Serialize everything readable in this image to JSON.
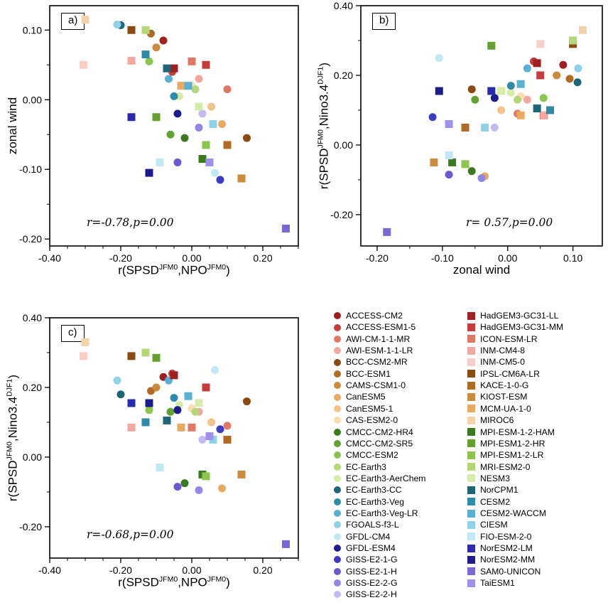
{
  "chart_data": {
    "type": "scatter",
    "description": "Inter-model scatter of CMIP models: South Pacific SLP dipole (SPSD) relations to NPO, zonal wind and Nino3.4",
    "panels": [
      {
        "id": "a",
        "label": "a)",
        "x": "npo",
        "y": "zw",
        "xlabel_parts": [
          {
            "t": "r(SPSD"
          },
          {
            "t": "JFM0",
            "sup": true
          },
          {
            "t": ",NPO"
          },
          {
            "t": "JFM0",
            "sup": true
          },
          {
            "t": ")"
          }
        ],
        "ylabel_parts": [
          {
            "t": "zonal wind"
          }
        ],
        "xlim": [
          -0.4,
          0.3
        ],
        "ylim": [
          -0.21,
          0.135
        ],
        "xticks": [
          -0.4,
          -0.2,
          0.0,
          0.2
        ],
        "yticks": [
          0.1,
          0.0,
          -0.1,
          -0.2
        ],
        "xminor": 0.05,
        "yminor": 0.05,
        "annotation": "r=-0.78,p=0.00"
      },
      {
        "id": "b",
        "label": "b)",
        "x": "zw",
        "y": "nino",
        "xlabel_parts": [
          {
            "t": "zonal wind"
          }
        ],
        "ylabel_parts": [
          {
            "t": "r(SPSD"
          },
          {
            "t": "JFM0",
            "sup": true
          },
          {
            "t": ",Nino3.4"
          },
          {
            "t": "DJF1",
            "sup": true
          },
          {
            "t": ")"
          }
        ],
        "xlim": [
          -0.225,
          0.145
        ],
        "ylim": [
          -0.29,
          0.4
        ],
        "xticks": [
          -0.2,
          -0.1,
          0.0,
          0.1
        ],
        "yticks": [
          0.4,
          0.2,
          0.0,
          -0.2
        ],
        "xminor": 0.05,
        "yminor": 0.1,
        "annotation": "r= 0.57,p=0.00"
      },
      {
        "id": "c",
        "label": "c)",
        "x": "npo",
        "y": "nino",
        "xlabel_parts": [
          {
            "t": "r(SPSD"
          },
          {
            "t": "JFM0",
            "sup": true
          },
          {
            "t": ",NPO"
          },
          {
            "t": "JFM0",
            "sup": true
          },
          {
            "t": ")"
          }
        ],
        "ylabel_parts": [
          {
            "t": "r(SPSD"
          },
          {
            "t": "JFM0",
            "sup": true
          },
          {
            "t": ",Nino3.4"
          },
          {
            "t": "DJF1",
            "sup": true
          },
          {
            "t": ")"
          }
        ],
        "xlim": [
          -0.4,
          0.3
        ],
        "ylim": [
          -0.29,
          0.4
        ],
        "xticks": [
          -0.4,
          -0.2,
          0.0,
          0.2
        ],
        "yticks": [
          0.4,
          0.2,
          0.0,
          -0.2
        ],
        "xminor": 0.05,
        "yminor": 0.1,
        "annotation": "r=-0.68,p=0.00"
      }
    ],
    "models": [
      {
        "name": "ACCESS-CM2",
        "group": "circle",
        "color": "#9e2020",
        "npo": -0.08,
        "zw": 0.085,
        "nino": 0.23
      },
      {
        "name": "ACCESS-ESM1-5",
        "group": "circle",
        "color": "#c43c3c",
        "npo": -0.055,
        "zw": 0.04,
        "nino": 0.24
      },
      {
        "name": "AWI-CM-1-1-MR",
        "group": "circle",
        "color": "#e07868",
        "npo": 0.1,
        "zw": 0.015,
        "nino": 0.09
      },
      {
        "name": "AWI-ESM-1-1-LR",
        "group": "circle",
        "color": "#f0a8a0",
        "npo": 0.02,
        "zw": 0.03,
        "nino": 0.13
      },
      {
        "name": "BCC-CSM2-MR",
        "group": "circle",
        "color": "#8a4a10",
        "npo": 0.155,
        "zw": -0.055,
        "nino": 0.16
      },
      {
        "name": "BCC-ESM1",
        "group": "circle",
        "color": "#b06a24",
        "npo": -0.115,
        "zw": 0.095,
        "nino": 0.19
      },
      {
        "name": "CAMS-CSM1-0",
        "group": "circle",
        "color": "#cc8a3c",
        "npo": -0.1,
        "zw": 0.075,
        "nino": 0.2
      },
      {
        "name": "CanESM5",
        "group": "circle",
        "color": "#e8aa60",
        "npo": 0.085,
        "zw": -0.035,
        "nino": -0.09
      },
      {
        "name": "CanESM5-1",
        "group": "circle",
        "color": "#f2c48c",
        "npo": 0.055,
        "zw": -0.01,
        "nino": 0.1
      },
      {
        "name": "CAS-ESM2-0",
        "group": "circle",
        "color": "#f8ddb4",
        "npo": 0.0,
        "zw": 0.02,
        "nino": 0.14
      },
      {
        "name": "CMCC-CM2-HR4",
        "group": "circle",
        "color": "#3c7a20",
        "npo": -0.02,
        "zw": -0.055,
        "nino": -0.075
      },
      {
        "name": "CMCC-CM2-SR5",
        "group": "circle",
        "color": "#64a032",
        "npo": -0.06,
        "zw": -0.05,
        "nino": 0.13
      },
      {
        "name": "CMCC-ESM2",
        "group": "circle",
        "color": "#8cc44e",
        "npo": -0.12,
        "zw": 0.055,
        "nino": 0.135
      },
      {
        "name": "EC-Earth3",
        "group": "circle",
        "color": "#b4d878",
        "npo": 0.01,
        "zw": 0.015,
        "nino": 0.13
      },
      {
        "name": "EC-Earth3-AerChem",
        "group": "circle",
        "color": "#d8ecaa",
        "npo": -0.035,
        "zw": 0.005,
        "nino": 0.15
      },
      {
        "name": "EC-Earth3-CC",
        "group": "circle",
        "color": "#1c6678",
        "npo": -0.2,
        "zw": 0.107,
        "nino": 0.18
      },
      {
        "name": "EC-Earth3-Veg",
        "group": "circle",
        "color": "#2f8ba6",
        "npo": -0.05,
        "zw": 0.005,
        "nino": 0.17
      },
      {
        "name": "EC-Earth3-Veg-LR",
        "group": "circle",
        "color": "#5ab0d0",
        "npo": -0.065,
        "zw": 0.03,
        "nino": 0.22
      },
      {
        "name": "FGOALS-f3-L",
        "group": "circle",
        "color": "#8fd2e8",
        "npo": -0.21,
        "zw": 0.108,
        "nino": 0.22
      },
      {
        "name": "GFDL-CM4",
        "group": "circle",
        "color": "#c2e8f4",
        "npo": 0.065,
        "zw": -0.105,
        "nino": 0.25
      },
      {
        "name": "GFDL-ESM4",
        "group": "circle",
        "color": "#1c1c8e",
        "npo": -0.04,
        "zw": -0.02,
        "nino": 0.135
      },
      {
        "name": "GISS-E2-1-G",
        "group": "circle",
        "color": "#3c3cc0",
        "npo": 0.08,
        "zw": -0.115,
        "nino": 0.08
      },
      {
        "name": "GISS-E2-1-H",
        "group": "circle",
        "color": "#6a58d0",
        "npo": -0.04,
        "zw": -0.09,
        "nino": -0.085
      },
      {
        "name": "GISS-E2-2-G",
        "group": "circle",
        "color": "#9486e4",
        "npo": 0.02,
        "zw": -0.04,
        "nino": -0.095
      },
      {
        "name": "GISS-E2-2-H",
        "group": "circle",
        "color": "#c4baf2",
        "npo": 0.03,
        "zw": -0.02,
        "nino": 0.05
      },
      {
        "name": "HadGEM3-GC31-LL",
        "group": "square",
        "color": "#9e2020",
        "npo": -0.05,
        "zw": 0.045,
        "nino": 0.235
      },
      {
        "name": "HadGEM3-GC31-MM",
        "group": "square",
        "color": "#c43c3c",
        "npo": 0.04,
        "zw": 0.05,
        "nino": 0.2
      },
      {
        "name": "ICON-ESM-LR",
        "group": "square",
        "color": "#e07868",
        "npo": 0.0,
        "zw": 0.055,
        "nino": 0.085
      },
      {
        "name": "INM-CM4-8",
        "group": "square",
        "color": "#f0a8a0",
        "npo": -0.17,
        "zw": 0.056,
        "nino": 0.085
      },
      {
        "name": "INM-CM5-0",
        "group": "square",
        "color": "#f8cfc8",
        "npo": -0.305,
        "zw": 0.05,
        "nino": 0.29
      },
      {
        "name": "IPSL-CM6A-LR",
        "group": "square",
        "color": "#8a4a10",
        "npo": -0.17,
        "zw": 0.1,
        "nino": 0.29
      },
      {
        "name": "KACE-1-0-G",
        "group": "square",
        "color": "#b06a24",
        "npo": 0.1,
        "zw": -0.065,
        "nino": 0.05
      },
      {
        "name": "KIOST-ESM",
        "group": "square",
        "color": "#cc8a3c",
        "npo": 0.14,
        "zw": -0.113,
        "nino": -0.05
      },
      {
        "name": "MCM-UA-1-0",
        "group": "square",
        "color": "#e8aa60",
        "npo": -0.03,
        "zw": 0.02,
        "nino": 0.085
      },
      {
        "name": "MIROC6",
        "group": "square",
        "color": "#f5d3a8",
        "npo": -0.3,
        "zw": 0.115,
        "nino": 0.33
      },
      {
        "name": "MPI-ESM-1-2-HAM",
        "group": "square",
        "color": "#3c7a20",
        "npo": 0.03,
        "zw": -0.085,
        "nino": -0.05
      },
      {
        "name": "MPI-ESM1-2-HR",
        "group": "square",
        "color": "#64a032",
        "npo": -0.1,
        "zw": -0.025,
        "nino": 0.285
      },
      {
        "name": "MPI-ESM1-2-LR",
        "group": "square",
        "color": "#8cc44e",
        "npo": 0.04,
        "zw": -0.065,
        "nino": -0.055
      },
      {
        "name": "MRI-ESM2-0",
        "group": "square",
        "color": "#b4d878",
        "npo": -0.13,
        "zw": 0.1,
        "nino": 0.3
      },
      {
        "name": "NESM3",
        "group": "square",
        "color": "#d8ecaa",
        "npo": 0.02,
        "zw": -0.01,
        "nino": 0.155
      },
      {
        "name": "NorCPM1",
        "group": "square",
        "color": "#1c6678",
        "npo": -0.07,
        "zw": 0.045,
        "nino": 0.105
      },
      {
        "name": "CESM2",
        "group": "square",
        "color": "#2f8ba6",
        "npo": -0.13,
        "zw": 0.065,
        "nino": 0.1
      },
      {
        "name": "CESM2-WACCM",
        "group": "square",
        "color": "#5ab0d0",
        "npo": -0.01,
        "zw": 0.02,
        "nino": 0.175
      },
      {
        "name": "CIESM",
        "group": "square",
        "color": "#8fd2e8",
        "npo": 0.06,
        "zw": -0.035,
        "nino": 0.05
      },
      {
        "name": "FIO-ESM-2-0",
        "group": "square",
        "color": "#c2e8f4",
        "npo": -0.09,
        "zw": -0.09,
        "nino": -0.03
      },
      {
        "name": "NorESM2-LM",
        "group": "square",
        "color": "#2a2ab0",
        "npo": -0.17,
        "zw": -0.025,
        "nino": 0.155
      },
      {
        "name": "NorESM2-MM",
        "group": "square",
        "color": "#1c1c8e",
        "npo": -0.12,
        "zw": -0.105,
        "nino": 0.155
      },
      {
        "name": "SAM0-UNICON",
        "group": "square",
        "color": "#7a68d8",
        "npo": 0.265,
        "zw": -0.185,
        "nino": -0.25
      },
      {
        "name": "TaiESM1",
        "group": "square",
        "color": "#a090ec",
        "npo": 0.05,
        "zw": -0.09,
        "nino": 0.06
      }
    ]
  },
  "legend": {
    "circle_marker": "circle",
    "square_marker": "square"
  },
  "style_colors": {
    "axis": "#000000",
    "background": "#ffffff"
  }
}
